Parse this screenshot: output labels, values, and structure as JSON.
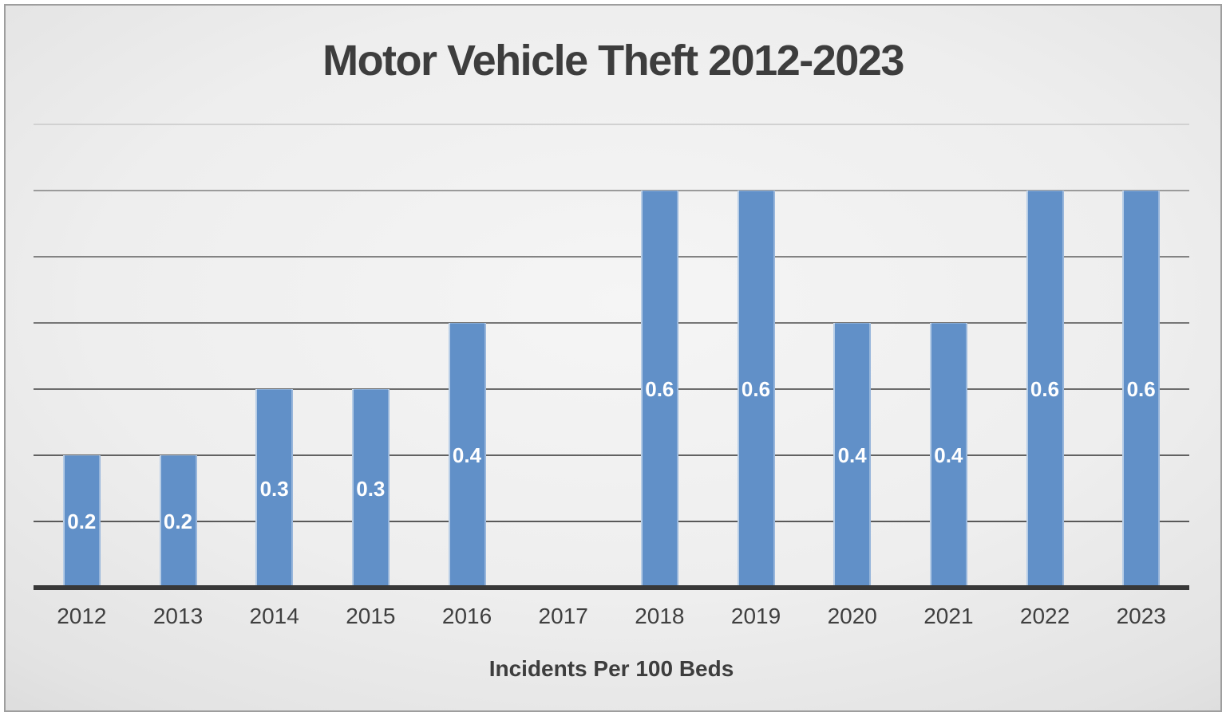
{
  "chart_data": {
    "type": "bar",
    "title": "Motor Vehicle Theft 2012-2023",
    "xlabel": "Incidents Per 100 Beds",
    "ylabel": "",
    "categories": [
      "2012",
      "2013",
      "2014",
      "2015",
      "2016",
      "2017",
      "2018",
      "2019",
      "2020",
      "2021",
      "2022",
      "2023"
    ],
    "values": [
      0.2,
      0.2,
      0.3,
      0.3,
      0.4,
      null,
      0.6,
      0.6,
      0.4,
      0.4,
      0.6,
      0.6
    ],
    "data_labels": [
      "0.2",
      "0.2",
      "0.3",
      "0.3",
      "0.4",
      "",
      "0.6",
      "0.6",
      "0.4",
      "0.4",
      "0.6",
      "0.6"
    ],
    "ylim": [
      0,
      0.7
    ],
    "gridline_interval": 0.1,
    "grid": true,
    "legend": "none",
    "y_tick_labels_visible": false,
    "style": {
      "bar_fill": "#6190c8",
      "bar_edge_highlight": "#ffffff",
      "data_label_color": "#ffffff",
      "axis_line_color": "#383838",
      "text_color": "#3f3f3f",
      "title_color": "#3d3d3d",
      "frame_border_color": "#9e9e9e",
      "gridline_colors_bottom_to_top": [
        "#595959",
        "#626262",
        "#6c6c6c",
        "#767676",
        "#838383",
        "#9b9b9b",
        "#d1d1d1"
      ]
    }
  }
}
